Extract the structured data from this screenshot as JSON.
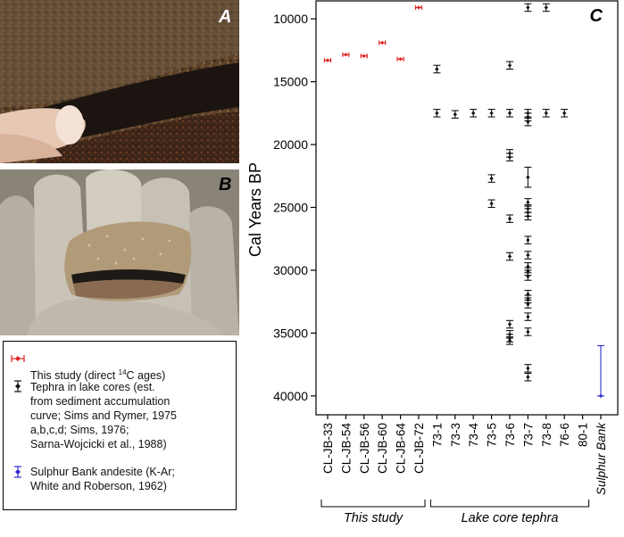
{
  "panels": {
    "a_label": "A",
    "b_label": "B",
    "c_label": "C"
  },
  "photos": {
    "a": {
      "subject": "rock-outcrop-with-finger"
    },
    "b": {
      "subject": "hand-holding-sample"
    }
  },
  "legend": {
    "items": [
      {
        "text_before": "This study (direct ",
        "superscript": "14",
        "text_after": "C ages)",
        "color": "#e02020"
      },
      {
        "text": "Tephra in lake cores (est.\nfrom sediment accumulation\ncurve; Sims and Rymer, 1975\na,b,c,d; Sims, 1976;\nSarna-Wojcicki et al., 1988)",
        "color": "#111111"
      },
      {
        "text": "Sulphur Bank andesite (K-Ar;\nWhite and Roberson, 1962)",
        "color": "#2a2acc"
      }
    ]
  },
  "chart_data": {
    "type": "scatter",
    "ylabel": "Cal Years BP",
    "y_inverted": true,
    "ylim": [
      8500,
      41500
    ],
    "yticks": [
      10000,
      15000,
      20000,
      25000,
      30000,
      35000,
      40000
    ],
    "ytick_labels": [
      "10000",
      "15000",
      "20000",
      "25000",
      "30000",
      "35000",
      "40000"
    ],
    "categories": [
      "CL-JB-33",
      "CL-JB-54",
      "CL-JB-56",
      "CL-JB-60",
      "CL-JB-64",
      "CL-JB-72",
      "73-1",
      "73-3",
      "73-4",
      "73-5",
      "73-6",
      "73-7",
      "73-8",
      "76-6",
      "80-1",
      "Sulphur Bank"
    ],
    "groups": [
      {
        "label": "This study",
        "from": 0,
        "to": 5
      },
      {
        "label": "Lake core tephra",
        "from": 6,
        "to": 14
      }
    ],
    "grid": false,
    "series": [
      {
        "color": "#e02020",
        "points": [
          {
            "cat": 0,
            "y": 13300,
            "err": 100
          },
          {
            "cat": 1,
            "y": 12850,
            "err": 100
          },
          {
            "cat": 2,
            "y": 12950,
            "err": 120
          },
          {
            "cat": 3,
            "y": 11900,
            "err": 120
          },
          {
            "cat": 4,
            "y": 13200,
            "err": 100
          },
          {
            "cat": 5,
            "y": 9100,
            "err": 80
          }
        ]
      },
      {
        "color": "#111111",
        "points": [
          {
            "cat": 6,
            "y": 14000,
            "err": 300
          },
          {
            "cat": 6,
            "y": 17500,
            "err": 300
          },
          {
            "cat": 7,
            "y": 17600,
            "err": 300
          },
          {
            "cat": 8,
            "y": 17500,
            "err": 300
          },
          {
            "cat": 9,
            "y": 17500,
            "err": 300
          },
          {
            "cat": 9,
            "y": 22700,
            "err": 300
          },
          {
            "cat": 9,
            "y": 24700,
            "err": 300
          },
          {
            "cat": 10,
            "y": 13700,
            "err": 300
          },
          {
            "cat": 10,
            "y": 17500,
            "err": 300
          },
          {
            "cat": 10,
            "y": 20700,
            "err": 300
          },
          {
            "cat": 10,
            "y": 21000,
            "err": 300
          },
          {
            "cat": 10,
            "y": 25900,
            "err": 300
          },
          {
            "cat": 10,
            "y": 28900,
            "err": 300
          },
          {
            "cat": 10,
            "y": 34300,
            "err": 300
          },
          {
            "cat": 10,
            "y": 35100,
            "err": 300
          },
          {
            "cat": 10,
            "y": 35400,
            "err": 300
          },
          {
            "cat": 10,
            "y": 35600,
            "err": 300
          },
          {
            "cat": 11,
            "y": 9100,
            "err": 300
          },
          {
            "cat": 11,
            "y": 17500,
            "err": 300
          },
          {
            "cat": 11,
            "y": 17800,
            "err": 300
          },
          {
            "cat": 11,
            "y": 18200,
            "err": 300
          },
          {
            "cat": 11,
            "y": 22600,
            "err": 800
          },
          {
            "cat": 11,
            "y": 24600,
            "err": 300
          },
          {
            "cat": 11,
            "y": 25100,
            "err": 300
          },
          {
            "cat": 11,
            "y": 25400,
            "err": 300
          },
          {
            "cat": 11,
            "y": 25700,
            "err": 300
          },
          {
            "cat": 11,
            "y": 27600,
            "err": 300
          },
          {
            "cat": 11,
            "y": 28800,
            "err": 300
          },
          {
            "cat": 11,
            "y": 29700,
            "err": 300
          },
          {
            "cat": 11,
            "y": 30100,
            "err": 300
          },
          {
            "cat": 11,
            "y": 30500,
            "err": 300
          },
          {
            "cat": 11,
            "y": 31900,
            "err": 300
          },
          {
            "cat": 11,
            "y": 32300,
            "err": 300
          },
          {
            "cat": 11,
            "y": 32700,
            "err": 300
          },
          {
            "cat": 11,
            "y": 33700,
            "err": 300
          },
          {
            "cat": 11,
            "y": 34900,
            "err": 300
          },
          {
            "cat": 11,
            "y": 37800,
            "err": 300
          },
          {
            "cat": 11,
            "y": 38500,
            "err": 300
          },
          {
            "cat": 12,
            "y": 9100,
            "err": 300
          },
          {
            "cat": 12,
            "y": 17500,
            "err": 300
          },
          {
            "cat": 13,
            "y": 17500,
            "err": 300
          }
        ]
      },
      {
        "color": "#2a2acc",
        "points": [
          {
            "cat": 15,
            "y": 40000,
            "err_high": 4000,
            "err_low": 0
          }
        ]
      }
    ]
  }
}
